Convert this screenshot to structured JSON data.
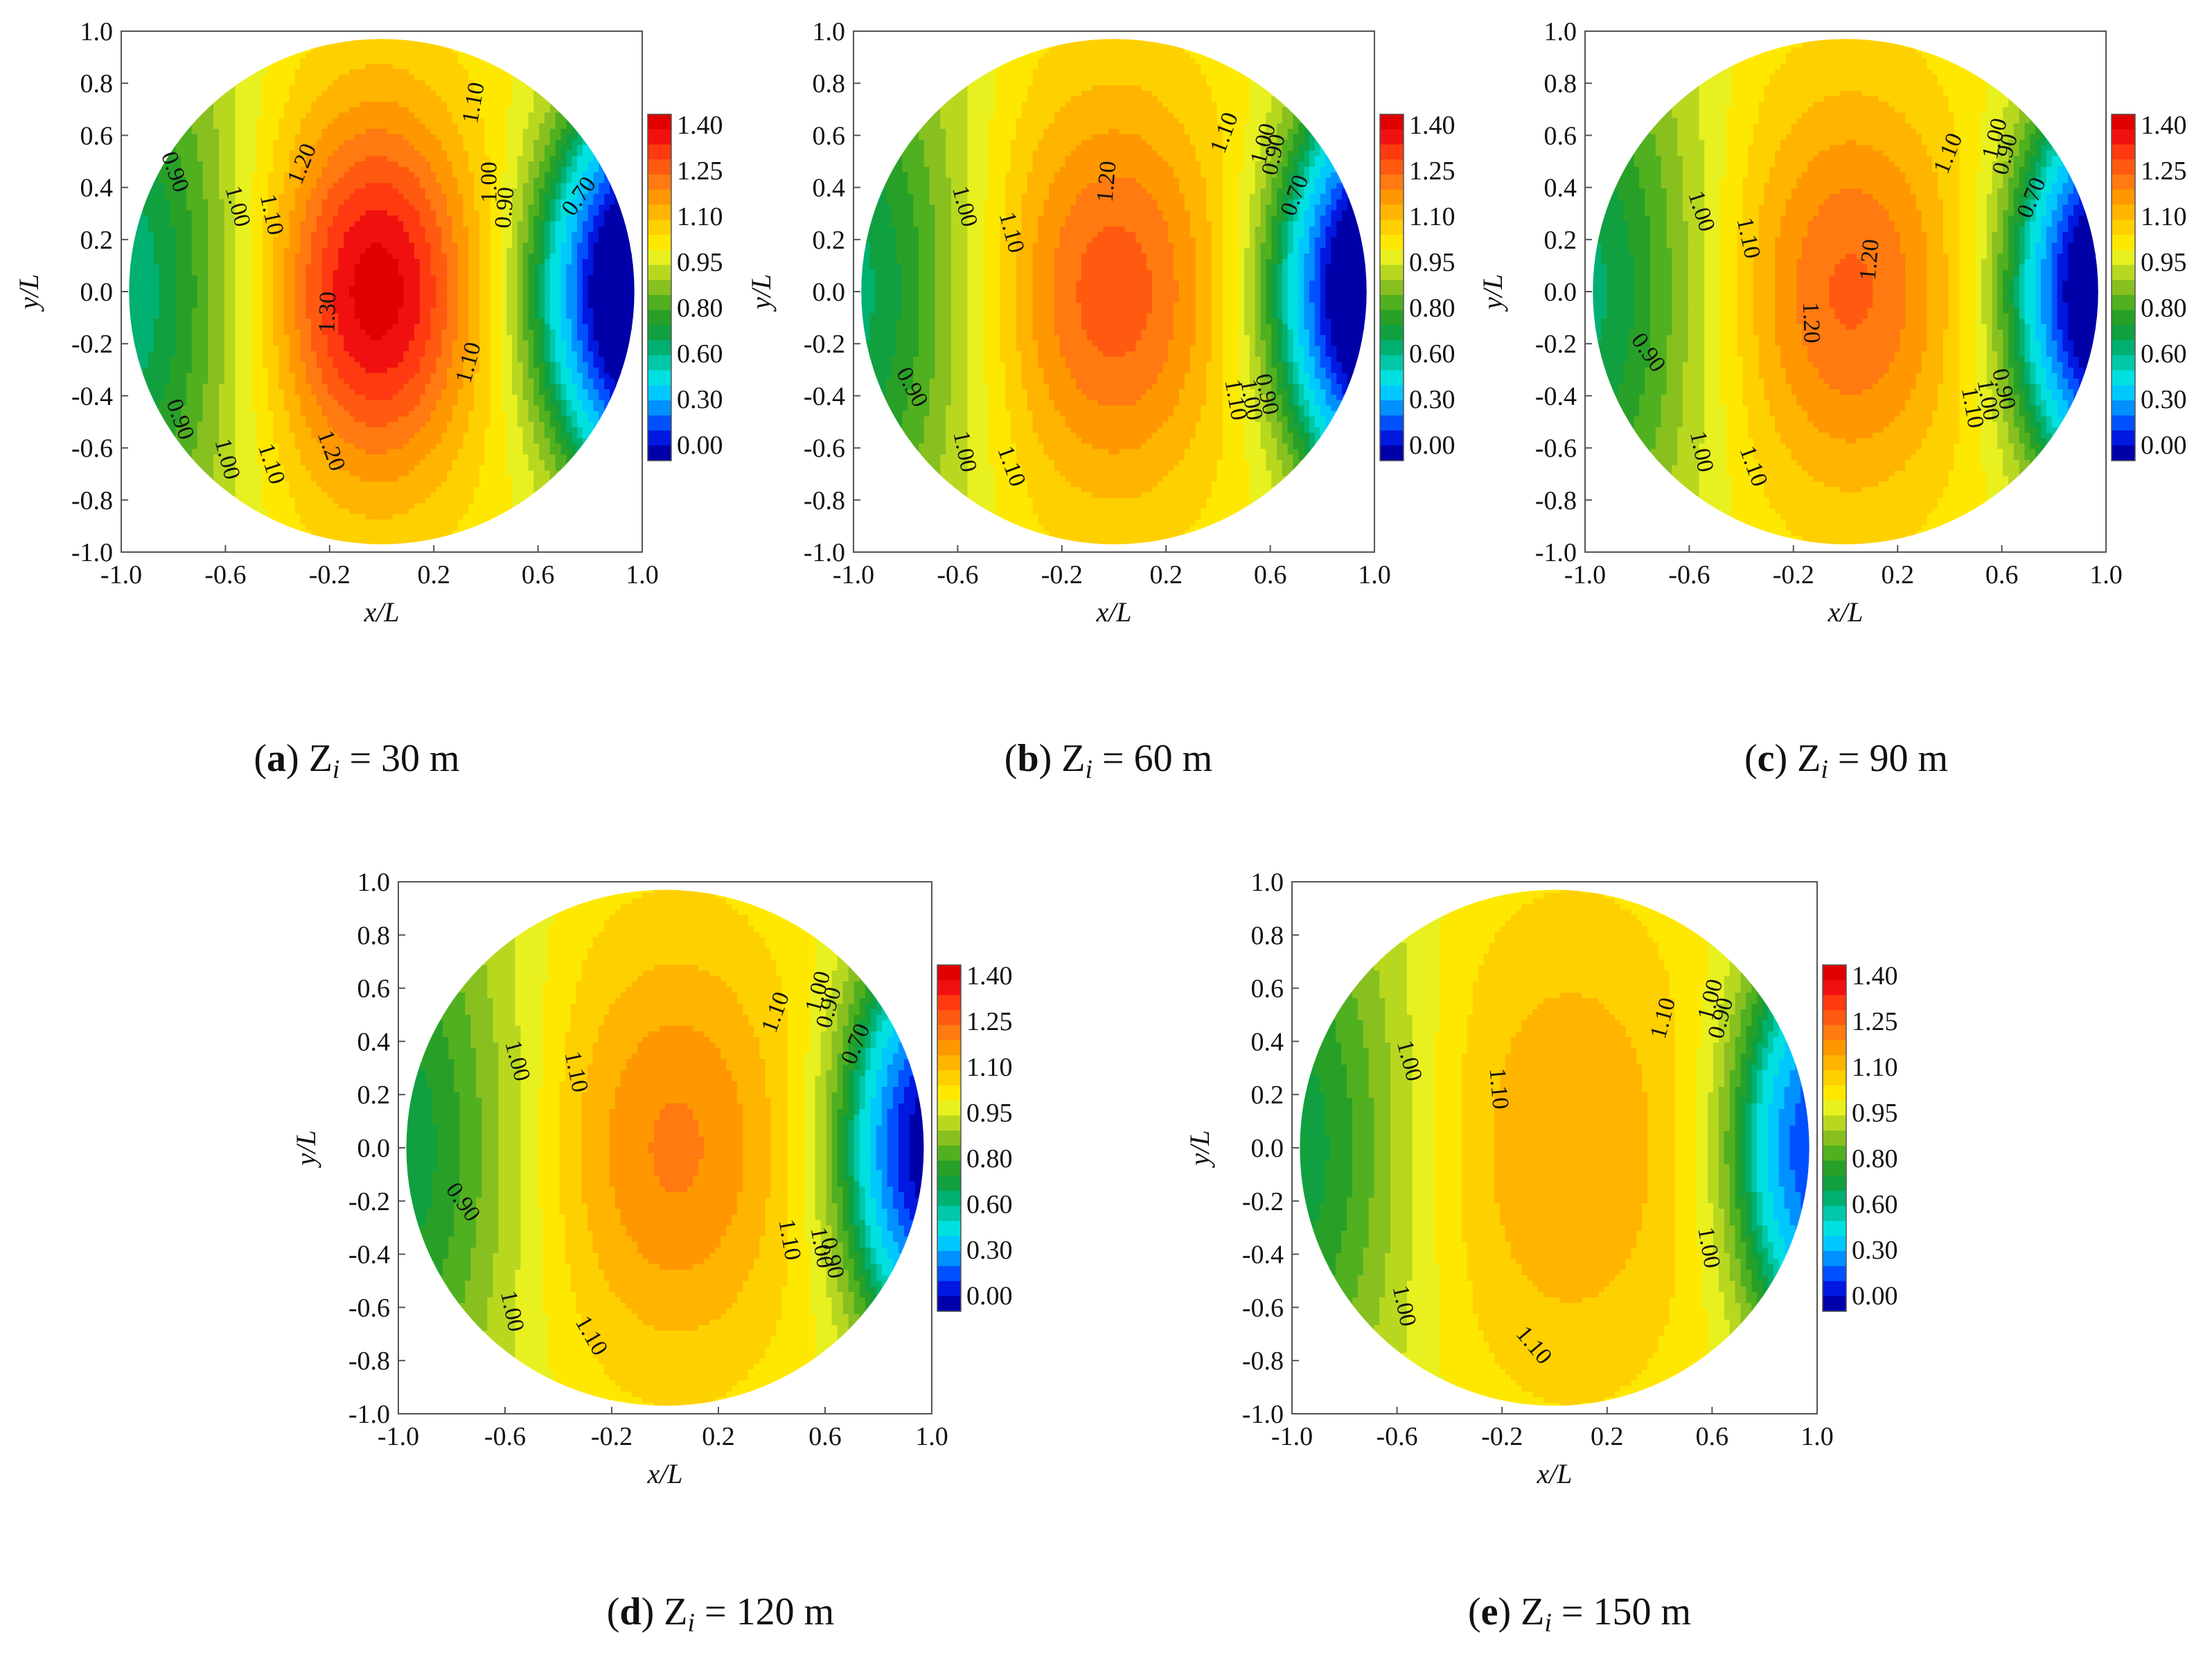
{
  "figure": {
    "title": ""
  },
  "chart_data": [
    {
      "type": "heatmap",
      "subtype": "filled-contour",
      "panel": "a",
      "caption": {
        "letter": "a",
        "var": "Z",
        "sub": "i",
        "rest": " = 30 m"
      },
      "xlabel": "x/L",
      "ylabel": "y/L",
      "xlim": [
        -1.0,
        1.0
      ],
      "ylim": [
        -1.0,
        1.0
      ],
      "xticks": [
        "-1.0",
        "-0.6",
        "-0.2",
        "0.2",
        "0.6",
        "1.0"
      ],
      "yticks": [
        "1.0",
        "0.8",
        "0.6",
        "0.4",
        "0.2",
        "0.0",
        "-0.2",
        "-0.4",
        "-0.6",
        "-0.8",
        "-1.0"
      ],
      "colorbar_labels": [
        "1.40",
        "1.25",
        "1.10",
        "0.95",
        "0.80",
        "0.60",
        "0.30",
        "0.00"
      ],
      "contour_labels": [
        {
          "text": "0.90",
          "x": -0.82,
          "y": 0.45,
          "rot": 70
        },
        {
          "text": "1.00",
          "x": -0.58,
          "y": 0.32,
          "rot": 75
        },
        {
          "text": "1.10",
          "x": -0.45,
          "y": 0.29,
          "rot": 78
        },
        {
          "text": "1.20",
          "x": -0.28,
          "y": 0.48,
          "rot": -68
        },
        {
          "text": "1.30",
          "x": -0.18,
          "y": -0.08,
          "rot": -88
        },
        {
          "text": "1.10",
          "x": 0.38,
          "y": 0.72,
          "rot": -80
        },
        {
          "text": "1.00",
          "x": 0.44,
          "y": 0.42,
          "rot": -90
        },
        {
          "text": "0.90",
          "x": 0.5,
          "y": 0.32,
          "rot": -85
        },
        {
          "text": "0.70",
          "x": 0.78,
          "y": 0.35,
          "rot": -55
        },
        {
          "text": "1.10",
          "x": 0.36,
          "y": -0.28,
          "rot": -75
        },
        {
          "text": "0.90",
          "x": -0.8,
          "y": -0.5,
          "rot": 70
        },
        {
          "text": "1.00",
          "x": -0.62,
          "y": -0.65,
          "rot": 75
        },
        {
          "text": "1.10",
          "x": -0.45,
          "y": -0.67,
          "rot": 72
        },
        {
          "text": "1.20",
          "x": -0.22,
          "y": -0.62,
          "rot": 70
        }
      ]
    },
    {
      "type": "heatmap",
      "subtype": "filled-contour",
      "panel": "b",
      "caption": {
        "letter": "b",
        "var": "Z",
        "sub": "i",
        "rest": " = 60 m"
      },
      "xlabel": "x/L",
      "ylabel": "y/L",
      "xlim": [
        -1.0,
        1.0
      ],
      "ylim": [
        -1.0,
        1.0
      ],
      "xticks": [
        "-1.0",
        "-0.6",
        "-0.2",
        "0.2",
        "0.6",
        "1.0"
      ],
      "yticks": [
        "1.0",
        "0.8",
        "0.6",
        "0.4",
        "0.2",
        "0.0",
        "-0.2",
        "-0.4",
        "-0.6",
        "-0.8",
        "-1.0"
      ],
      "colorbar_labels": [
        "1.40",
        "1.25",
        "1.10",
        "0.95",
        "0.80",
        "0.60",
        "0.30",
        "0.00"
      ],
      "contour_labels": [
        {
          "text": "1.00",
          "x": -0.6,
          "y": 0.32,
          "rot": 75
        },
        {
          "text": "1.10",
          "x": -0.42,
          "y": 0.22,
          "rot": 75
        },
        {
          "text": "1.20",
          "x": 0.0,
          "y": 0.42,
          "rot": -85
        },
        {
          "text": "1.10",
          "x": 0.45,
          "y": 0.6,
          "rot": -70
        },
        {
          "text": "1.00",
          "x": 0.6,
          "y": 0.56,
          "rot": -75
        },
        {
          "text": "0.90",
          "x": 0.64,
          "y": 0.52,
          "rot": -78
        },
        {
          "text": "0.70",
          "x": 0.72,
          "y": 0.36,
          "rot": -70
        },
        {
          "text": "0.90",
          "x": -0.8,
          "y": -0.38,
          "rot": 62
        },
        {
          "text": "1.00",
          "x": -0.6,
          "y": -0.62,
          "rot": 78
        },
        {
          "text": "1.10",
          "x": -0.42,
          "y": -0.68,
          "rot": 70
        },
        {
          "text": "1.00",
          "x": 0.5,
          "y": -0.42,
          "rot": 80
        },
        {
          "text": "0.90",
          "x": 0.56,
          "y": -0.4,
          "rot": 78
        },
        {
          "text": "1.10",
          "x": 0.44,
          "y": -0.42,
          "rot": 80
        }
      ]
    },
    {
      "type": "heatmap",
      "subtype": "filled-contour",
      "panel": "c",
      "caption": {
        "letter": "c",
        "var": "Z",
        "sub": "i",
        "rest": " = 90 m"
      },
      "xlabel": "x/L",
      "ylabel": "y/L",
      "xlim": [
        -1.0,
        1.0
      ],
      "ylim": [
        -1.0,
        1.0
      ],
      "xticks": [
        "-1.0",
        "-0.6",
        "-0.2",
        "0.2",
        "0.6",
        "1.0"
      ],
      "yticks": [
        "1.0",
        "0.8",
        "0.6",
        "0.4",
        "0.2",
        "0.0",
        "-0.2",
        "-0.4",
        "-0.6",
        "-0.8",
        "-1.0"
      ],
      "colorbar_labels": [
        "1.40",
        "1.25",
        "1.10",
        "0.95",
        "0.80",
        "0.60",
        "0.30",
        "0.00"
      ],
      "contour_labels": [
        {
          "text": "1.00",
          "x": -0.58,
          "y": 0.3,
          "rot": 72
        },
        {
          "text": "1.10",
          "x": -0.4,
          "y": 0.2,
          "rot": 78
        },
        {
          "text": "1.20",
          "x": 0.12,
          "y": 0.12,
          "rot": -85
        },
        {
          "text": "1.20",
          "x": -0.16,
          "y": -0.12,
          "rot": 88
        },
        {
          "text": "1.10",
          "x": 0.42,
          "y": 0.52,
          "rot": -68
        },
        {
          "text": "1.00",
          "x": 0.6,
          "y": 0.58,
          "rot": -75
        },
        {
          "text": "0.90",
          "x": 0.64,
          "y": 0.52,
          "rot": -75
        },
        {
          "text": "0.70",
          "x": 0.74,
          "y": 0.35,
          "rot": -68
        },
        {
          "text": "0.90",
          "x": -0.78,
          "y": -0.25,
          "rot": 55
        },
        {
          "text": "1.00",
          "x": -0.58,
          "y": -0.62,
          "rot": 78
        },
        {
          "text": "1.10",
          "x": -0.38,
          "y": -0.68,
          "rot": 70
        },
        {
          "text": "1.00",
          "x": 0.52,
          "y": -0.42,
          "rot": 80
        },
        {
          "text": "0.90",
          "x": 0.58,
          "y": -0.38,
          "rot": 78
        },
        {
          "text": "1.10",
          "x": 0.46,
          "y": -0.45,
          "rot": 80
        }
      ]
    },
    {
      "type": "heatmap",
      "subtype": "filled-contour",
      "panel": "d",
      "caption": {
        "letter": "d",
        "var": "Z",
        "sub": "i",
        "rest": " = 120 m"
      },
      "xlabel": "x/L",
      "ylabel": "y/L",
      "xlim": [
        -1.0,
        1.0
      ],
      "ylim": [
        -1.0,
        1.0
      ],
      "xticks": [
        "-1.0",
        "-0.6",
        "-0.2",
        "0.2",
        "0.6",
        "1.0"
      ],
      "yticks": [
        "1.0",
        "0.8",
        "0.6",
        "0.4",
        "0.2",
        "0.0",
        "-0.2",
        "-0.4",
        "-0.6",
        "-0.8",
        "-1.0"
      ],
      "colorbar_labels": [
        "1.40",
        "1.25",
        "1.10",
        "0.95",
        "0.80",
        "0.60",
        "0.30",
        "0.00"
      ],
      "contour_labels": [
        {
          "text": "1.00",
          "x": -0.58,
          "y": 0.32,
          "rot": 75
        },
        {
          "text": "1.10",
          "x": -0.36,
          "y": 0.28,
          "rot": 78
        },
        {
          "text": "1.10",
          "x": 0.44,
          "y": 0.5,
          "rot": -70
        },
        {
          "text": "1.00",
          "x": 0.6,
          "y": 0.58,
          "rot": -75
        },
        {
          "text": "0.90",
          "x": 0.64,
          "y": 0.52,
          "rot": -75
        },
        {
          "text": "0.70",
          "x": 0.74,
          "y": 0.38,
          "rot": -68
        },
        {
          "text": "0.90",
          "x": -0.78,
          "y": -0.22,
          "rot": 55
        },
        {
          "text": "1.00",
          "x": -0.6,
          "y": -0.62,
          "rot": 78
        },
        {
          "text": "1.10",
          "x": -0.3,
          "y": -0.72,
          "rot": 60
        },
        {
          "text": "1.10",
          "x": 0.44,
          "y": -0.35,
          "rot": 80
        },
        {
          "text": "1.00",
          "x": 0.56,
          "y": -0.38,
          "rot": 80
        },
        {
          "text": "0.90",
          "x": 0.6,
          "y": -0.42,
          "rot": 78
        }
      ]
    },
    {
      "type": "heatmap",
      "subtype": "filled-contour",
      "panel": "e",
      "caption": {
        "letter": "e",
        "var": "Z",
        "sub": "i",
        "rest": " = 150 m"
      },
      "xlabel": "x/L",
      "ylabel": "y/L",
      "xlim": [
        -1.0,
        1.0
      ],
      "ylim": [
        -1.0,
        1.0
      ],
      "xticks": [
        "-1.0",
        "-0.6",
        "-0.2",
        "0.2",
        "0.6",
        "1.0"
      ],
      "yticks": [
        "1.0",
        "0.8",
        "0.6",
        "0.4",
        "0.2",
        "0.0",
        "-0.2",
        "-0.4",
        "-0.6",
        "-0.8",
        "-1.0"
      ],
      "colorbar_labels": [
        "1.40",
        "1.25",
        "1.10",
        "0.95",
        "0.80",
        "0.60",
        "0.30",
        "0.00"
      ],
      "contour_labels": [
        {
          "text": "1.00",
          "x": -0.58,
          "y": 0.32,
          "rot": 75
        },
        {
          "text": "1.10",
          "x": -0.24,
          "y": 0.22,
          "rot": 85
        },
        {
          "text": "1.10",
          "x": 0.44,
          "y": 0.48,
          "rot": -75
        },
        {
          "text": "1.00",
          "x": 0.62,
          "y": 0.55,
          "rot": -75
        },
        {
          "text": "0.90",
          "x": 0.66,
          "y": 0.48,
          "rot": -75
        },
        {
          "text": "1.00",
          "x": -0.6,
          "y": -0.6,
          "rot": 78
        },
        {
          "text": "1.10",
          "x": -0.1,
          "y": -0.76,
          "rot": 50
        },
        {
          "text": "1.00",
          "x": 0.56,
          "y": -0.38,
          "rot": 80
        }
      ]
    }
  ]
}
